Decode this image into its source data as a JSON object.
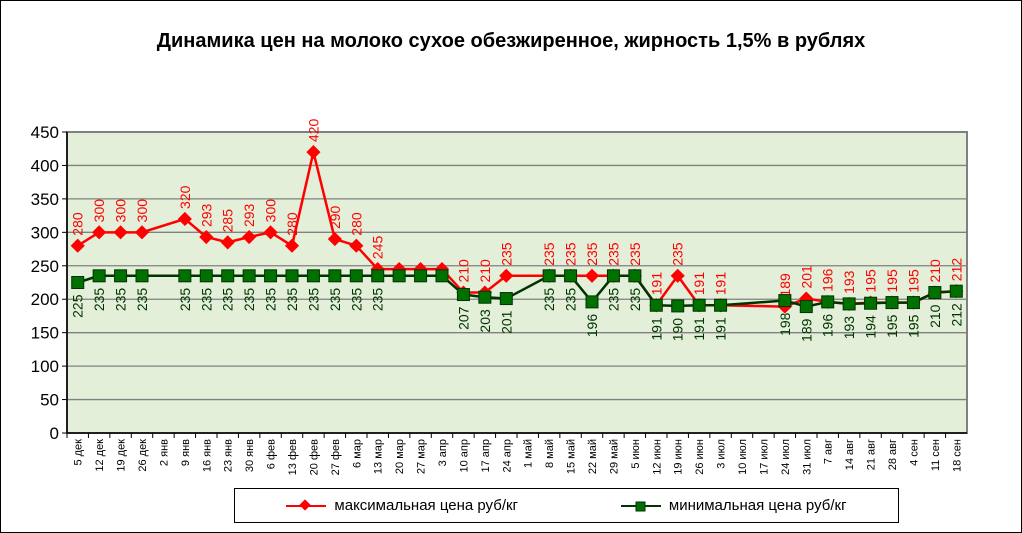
{
  "chart_data": {
    "type": "line",
    "title": "Динамика цен на молоко сухое обезжиренное, жирность 1,5%  в рублях",
    "xlabel": "",
    "ylabel": "",
    "ylim": [
      0,
      450
    ],
    "yticks": [
      0,
      50,
      100,
      150,
      200,
      250,
      300,
      350,
      400,
      450
    ],
    "grid": true,
    "legend_position": "bottom",
    "categories": [
      "5 дек",
      "12 дек",
      "19 дек",
      "26 дек",
      "2 янв",
      "9 янв",
      "16 янв",
      "23 янв",
      "30 янв",
      "6 фев",
      "13 фев",
      "20 фев",
      "27 фев",
      "6 мар",
      "13 мар",
      "20 мар",
      "27 мар",
      "3 апр",
      "10 апр",
      "17 апр",
      "24 апр",
      "1 май",
      "8 май",
      "15 май",
      "22 май",
      "29 май",
      "5 июн",
      "12 июн",
      "19 июн",
      "26 июн",
      "3 июл",
      "10 июл",
      "17 июл",
      "24 июл",
      "31 июл",
      "7 авг",
      "14 авг",
      "21 авг",
      "28 авг",
      "4 сен",
      "11 сен",
      "18 сен"
    ],
    "series": [
      {
        "name": "максимальная цена руб/кг",
        "color": "#FF0000",
        "values": [
          280,
          300,
          300,
          300,
          null,
          320,
          293,
          285,
          293,
          300,
          280,
          420,
          290,
          280,
          245,
          245,
          245,
          245,
          210,
          210,
          235,
          null,
          235,
          235,
          235,
          235,
          235,
          191,
          235,
          191,
          191,
          null,
          null,
          189,
          201,
          196,
          193,
          195,
          195,
          195,
          210,
          212
        ],
        "labels_shown": [
          true,
          true,
          true,
          true,
          false,
          true,
          true,
          true,
          true,
          true,
          true,
          true,
          true,
          true,
          true,
          false,
          false,
          false,
          true,
          true,
          true,
          false,
          true,
          true,
          true,
          true,
          true,
          true,
          true,
          true,
          true,
          false,
          false,
          true,
          true,
          true,
          true,
          true,
          true,
          true,
          true,
          true
        ]
      },
      {
        "name": "минимальная цена руб/кг",
        "color": "#006600",
        "values": [
          225,
          235,
          235,
          235,
          null,
          235,
          235,
          235,
          235,
          235,
          235,
          235,
          235,
          235,
          235,
          235,
          235,
          235,
          207,
          203,
          201,
          null,
          235,
          235,
          196,
          235,
          235,
          191,
          190,
          191,
          191,
          null,
          null,
          198,
          189,
          196,
          193,
          194,
          195,
          195,
          210,
          212
        ],
        "labels_shown": [
          true,
          true,
          true,
          true,
          false,
          true,
          true,
          true,
          true,
          true,
          true,
          true,
          true,
          true,
          true,
          false,
          false,
          false,
          true,
          true,
          true,
          false,
          true,
          true,
          true,
          true,
          true,
          true,
          true,
          true,
          true,
          false,
          false,
          true,
          true,
          true,
          true,
          true,
          true,
          true,
          true,
          true
        ]
      }
    ]
  }
}
